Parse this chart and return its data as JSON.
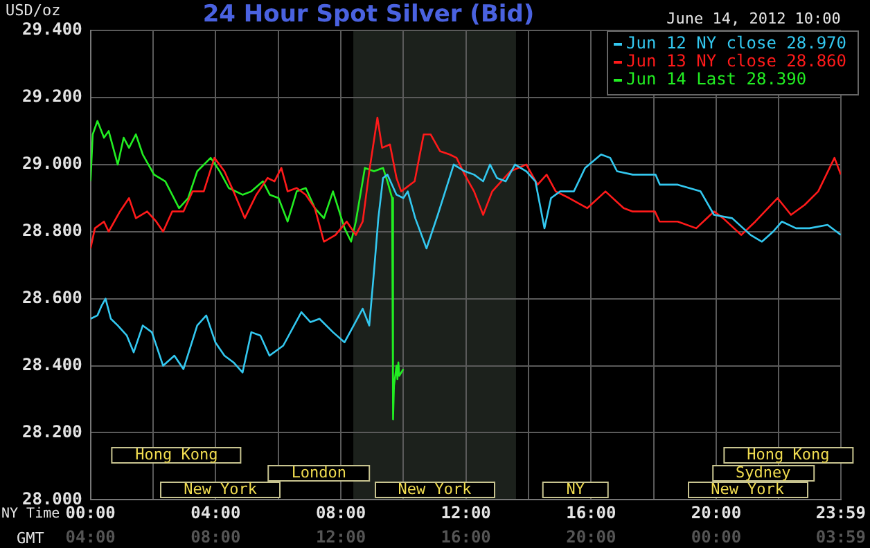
{
  "chart_data": {
    "type": "line",
    "title": "24 Hour Spot Silver (Bid)",
    "subtitle": "June 14, 2012 10:00",
    "ylabel": "USD/oz",
    "xlabel": "NY Time",
    "x2label": "GMT",
    "xlim": [
      0,
      23.983
    ],
    "xticks": [
      {
        "value": 0,
        "label": "00:00"
      },
      {
        "value": 2,
        "label": null
      },
      {
        "value": 4,
        "label": "04:00"
      },
      {
        "value": 6,
        "label": null
      },
      {
        "value": 8,
        "label": "08:00"
      },
      {
        "value": 10,
        "label": null
      },
      {
        "value": 12,
        "label": "12:00"
      },
      {
        "value": 14,
        "label": null
      },
      {
        "value": 16,
        "label": "16:00"
      },
      {
        "value": 18,
        "label": null
      },
      {
        "value": 20,
        "label": "20:00"
      },
      {
        "value": 22,
        "label": null
      },
      {
        "value": 23.983,
        "label": "23:59"
      }
    ],
    "x2lim": [
      "2012-06-14T04:00",
      "2012-06-15T03:59"
    ],
    "x2ticks": [
      {
        "value": "2012-06-14T04:00",
        "label": "04:00"
      },
      {
        "value": "2012-06-14T08:00",
        "label": "08:00"
      },
      {
        "value": "2012-06-14T12:00",
        "label": "12:00"
      },
      {
        "value": "2012-06-14T16:00",
        "label": "16:00"
      },
      {
        "value": "2012-06-14T20:00",
        "label": "20:00"
      },
      {
        "value": "2012-06-15T00:00",
        "label": "00:00"
      },
      {
        "value": "2012-06-15T03:59",
        "label": "03:59"
      }
    ],
    "ylim": [
      28,
      29.4
    ],
    "yticks": [
      {
        "value": 28,
        "label": "28.000"
      },
      {
        "value": 28.2,
        "label": "28.200"
      },
      {
        "value": 28.4,
        "label": "28.400"
      },
      {
        "value": 28.6,
        "label": "28.600"
      },
      {
        "value": 28.8,
        "label": "28.800"
      },
      {
        "value": 29,
        "label": "29.000"
      },
      {
        "value": 29.2,
        "label": "29.200"
      },
      {
        "value": 29.4,
        "label": "29.400"
      }
    ],
    "grid": true,
    "legend": "top right",
    "bands": [
      {
        "axis": "x",
        "from": 8.4,
        "to": 13.6,
        "color": "#1c211c"
      }
    ],
    "annotations": [
      "Hong Kong",
      "Hong Kong",
      "London",
      "Sydney",
      "New York",
      "New York",
      "NY",
      "New York"
    ],
    "series": [
      {
        "name": "Jun 12 NY close 28.970",
        "color": "#33c8f0",
        "x": [
          0,
          0.22,
          0.36,
          0.48,
          0.65,
          0.87,
          1.16,
          1.38,
          1.67,
          1.96,
          2.32,
          2.68,
          2.97,
          3.41,
          3.7,
          3.99,
          4.28,
          4.57,
          4.86,
          5.14,
          5.43,
          5.72,
          6.16,
          6.74,
          7.03,
          7.32,
          7.75,
          8.12,
          8.41,
          8.7,
          8.91,
          9.06,
          9.2,
          9.35,
          9.49,
          9.78,
          10.0,
          10.14,
          10.38,
          10.74,
          11.1,
          11.61,
          11.96,
          12.26,
          12.55,
          12.77,
          12.99,
          13.27,
          13.57,
          13.93,
          14.22,
          14.51,
          14.72,
          15.01,
          15.45,
          15.81,
          16.32,
          16.61,
          16.83,
          17.33,
          18.06,
          18.2,
          18.77,
          19.5,
          19.93,
          20.51,
          21.1,
          21.46,
          21.82,
          22.1,
          22.55,
          22.98,
          23.56,
          23.983
        ],
        "values": [
          28.54,
          28.55,
          28.58,
          28.6,
          28.54,
          28.52,
          28.49,
          28.44,
          28.52,
          28.5,
          28.4,
          28.43,
          28.39,
          28.52,
          28.55,
          28.47,
          28.43,
          28.41,
          28.38,
          28.5,
          28.49,
          28.43,
          28.46,
          28.56,
          28.53,
          28.54,
          28.5,
          28.47,
          28.52,
          28.57,
          28.52,
          28.68,
          28.84,
          28.96,
          28.97,
          28.91,
          28.9,
          28.92,
          28.84,
          28.75,
          28.85,
          29.0,
          28.98,
          28.97,
          28.95,
          29.0,
          28.96,
          28.95,
          29.0,
          28.98,
          28.95,
          28.81,
          28.9,
          28.92,
          28.92,
          28.99,
          29.03,
          29.02,
          28.98,
          28.97,
          28.97,
          28.94,
          28.94,
          28.92,
          28.85,
          28.84,
          28.79,
          28.77,
          28.8,
          28.83,
          28.81,
          28.81,
          28.82,
          28.79
        ]
      },
      {
        "name": "Jun 13 NY close 28.860",
        "color": "#ff1a1a",
        "x": [
          0,
          0.14,
          0.43,
          0.58,
          0.94,
          1.23,
          1.45,
          1.81,
          2.1,
          2.32,
          2.61,
          2.97,
          3.26,
          3.62,
          3.96,
          4.28,
          4.57,
          4.93,
          5.3,
          5.66,
          5.88,
          6.1,
          6.3,
          6.59,
          6.88,
          7.17,
          7.46,
          7.83,
          8.19,
          8.48,
          8.7,
          8.91,
          9.17,
          9.32,
          9.57,
          9.78,
          9.93,
          10.36,
          10.65,
          10.87,
          11.17,
          11.48,
          11.7,
          11.96,
          12.26,
          12.55,
          12.84,
          13.13,
          13.42,
          13.93,
          14.29,
          14.58,
          14.87,
          15.3,
          15.88,
          16.46,
          17.04,
          17.33,
          18.04,
          18.19,
          18.77,
          19.36,
          19.93,
          20.22,
          20.8,
          21.25,
          21.96,
          22.39,
          22.83,
          23.26,
          23.78,
          23.983
        ],
        "values": [
          28.75,
          28.81,
          28.83,
          28.8,
          28.86,
          28.9,
          28.84,
          28.86,
          28.83,
          28.8,
          28.86,
          28.86,
          28.92,
          28.92,
          29.02,
          28.98,
          28.92,
          28.84,
          28.91,
          28.96,
          28.95,
          28.99,
          28.92,
          28.93,
          28.91,
          28.87,
          28.77,
          28.79,
          28.83,
          28.79,
          28.83,
          28.98,
          29.14,
          29.05,
          29.06,
          28.96,
          28.92,
          28.95,
          29.09,
          29.09,
          29.04,
          29.03,
          29.02,
          28.97,
          28.92,
          28.85,
          28.92,
          28.95,
          28.98,
          29.0,
          28.94,
          28.97,
          28.92,
          28.9,
          28.87,
          28.92,
          28.87,
          28.86,
          28.86,
          28.83,
          28.83,
          28.81,
          28.86,
          28.84,
          28.79,
          28.83,
          28.9,
          28.85,
          28.88,
          28.92,
          29.02,
          28.97
        ]
      },
      {
        "name": "Jun 14 Last 28.390",
        "color": "#22ee22",
        "x": [
          0,
          0.07,
          0.22,
          0.43,
          0.58,
          0.87,
          1.06,
          1.23,
          1.45,
          1.67,
          2.03,
          2.39,
          2.83,
          3.12,
          3.41,
          3.84,
          4.13,
          4.42,
          4.86,
          5.14,
          5.51,
          5.73,
          6.01,
          6.3,
          6.59,
          6.88,
          7.17,
          7.46,
          7.75,
          8.12,
          8.33,
          8.48,
          8.77,
          9.06,
          9.35,
          9.49,
          9.64,
          9.67,
          9.7,
          9.78,
          9.81,
          9.84,
          9.87,
          10.0
        ],
        "values": [
          28.95,
          29.09,
          29.13,
          29.08,
          29.1,
          29.0,
          29.08,
          29.05,
          29.09,
          29.03,
          28.97,
          28.95,
          28.87,
          28.9,
          28.98,
          29.02,
          28.98,
          28.93,
          28.91,
          28.92,
          28.95,
          28.91,
          28.9,
          28.83,
          28.92,
          28.93,
          28.87,
          28.84,
          28.92,
          28.81,
          28.77,
          28.83,
          28.99,
          28.98,
          28.99,
          28.95,
          28.9,
          28.24,
          28.34,
          28.4,
          28.36,
          28.41,
          28.37,
          28.39
        ]
      }
    ]
  }
}
